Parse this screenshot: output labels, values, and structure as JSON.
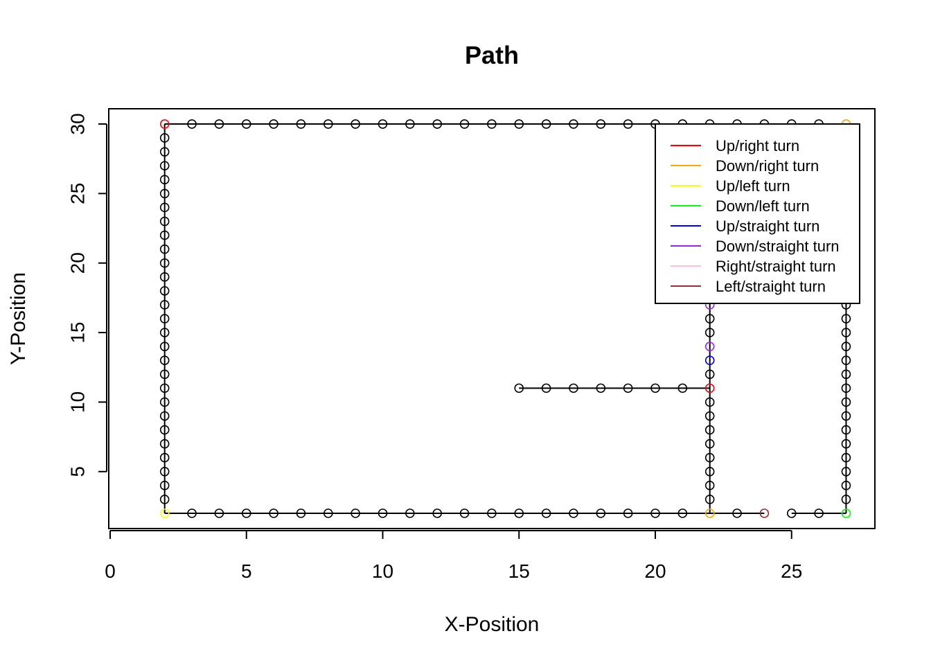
{
  "chart_data": {
    "type": "scatter",
    "title": "Path",
    "xlabel": "X-Position",
    "ylabel": "Y-Position",
    "xlim": [
      0,
      28
    ],
    "ylim": [
      2,
      30
    ],
    "xticks": [
      "0",
      "5",
      "10",
      "15",
      "20",
      "25"
    ],
    "yticks": [
      "5",
      "10",
      "15",
      "20",
      "25",
      "30"
    ],
    "legend_position": "top-right",
    "legend": [
      {
        "label": "Up/right turn",
        "color": "#ff0000"
      },
      {
        "label": "Down/right turn",
        "color": "#ffa500"
      },
      {
        "label": "Up/left turn",
        "color": "#ffff00"
      },
      {
        "label": "Down/left turn",
        "color": "#00ff00"
      },
      {
        "label": "Up/straight turn",
        "color": "#0000ff"
      },
      {
        "label": "Down/straight turn",
        "color": "#a020f0"
      },
      {
        "label": "Right/straight turn",
        "color": "#ffc0cb"
      },
      {
        "label": "Left/straight turn",
        "color": "#a52a2a"
      }
    ],
    "path_segments": [
      {
        "from": [
          15,
          11
        ],
        "to": [
          22,
          11
        ]
      },
      {
        "from": [
          22,
          11
        ],
        "to": [
          22,
          30
        ]
      },
      {
        "from": [
          22,
          2
        ],
        "to": [
          22,
          11
        ]
      },
      {
        "from": [
          2,
          2
        ],
        "to": [
          24,
          2
        ]
      },
      {
        "from": [
          25,
          2
        ],
        "to": [
          27,
          2
        ]
      },
      {
        "from": [
          27,
          2
        ],
        "to": [
          27,
          30
        ]
      },
      {
        "from": [
          2,
          2
        ],
        "to": [
          2,
          30
        ]
      },
      {
        "from": [
          2,
          30
        ],
        "to": [
          27,
          30
        ]
      }
    ],
    "colored_points": [
      {
        "x": 2,
        "y": 30,
        "color": "#ff0000"
      },
      {
        "x": 2,
        "y": 2,
        "color": "#ffff00"
      },
      {
        "x": 22,
        "y": 11,
        "color": "#ff0000"
      },
      {
        "x": 22,
        "y": 13,
        "color": "#0000ff"
      },
      {
        "x": 22,
        "y": 14,
        "color": "#a020f0"
      },
      {
        "x": 22,
        "y": 17,
        "color": "#a020f0"
      },
      {
        "x": 22,
        "y": 2,
        "color": "#ffa500"
      },
      {
        "x": 24,
        "y": 2,
        "color": "#a52a2a"
      },
      {
        "x": 27,
        "y": 2,
        "color": "#00ff00"
      },
      {
        "x": 27,
        "y": 30,
        "color": "#ffa500"
      }
    ]
  }
}
